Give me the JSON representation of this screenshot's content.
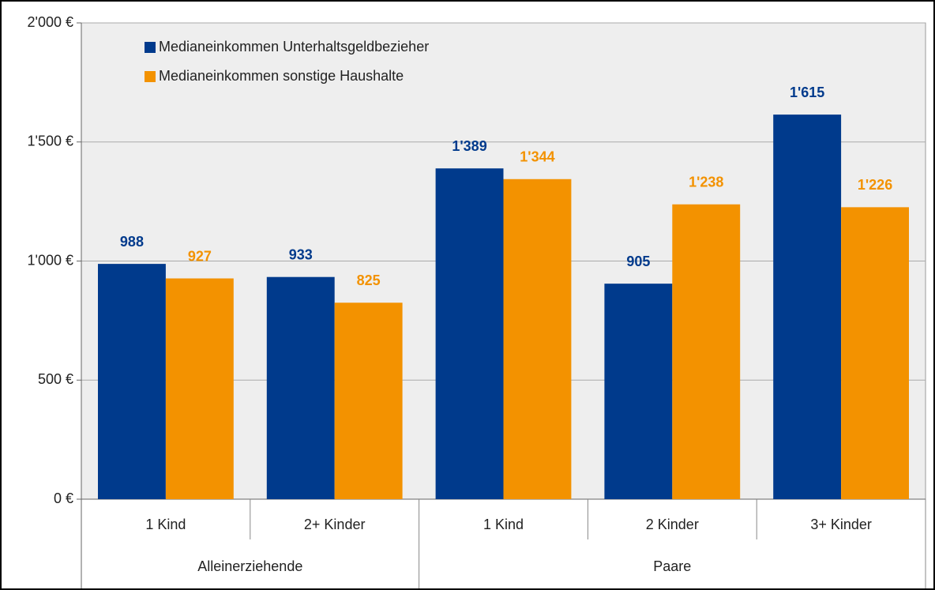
{
  "chart_data": {
    "type": "bar",
    "groups": [
      {
        "name": "Alleinerziehende",
        "categories": [
          "1 Kind",
          "2+ Kinder"
        ]
      },
      {
        "name": "Paare",
        "categories": [
          "1 Kind",
          "2 Kinder",
          "3+ Kinder"
        ]
      }
    ],
    "series": [
      {
        "name": "Medianeinkommen Unterhaltsgeldbezieher",
        "color": "#003a8c",
        "values": [
          988,
          933,
          1389,
          905,
          1615
        ],
        "value_labels": [
          "988",
          "933",
          "1'389",
          "905",
          "1'615"
        ]
      },
      {
        "name": "Medianeinkommen sonstige Haushalte",
        "color": "#f39200",
        "values": [
          927,
          825,
          1344,
          1238,
          1226
        ],
        "value_labels": [
          "927",
          "825",
          "1'344",
          "1'238",
          "1'226"
        ]
      }
    ],
    "ylim": [
      0,
      2000
    ],
    "yticks": [
      {
        "value": 0,
        "label": "0 €"
      },
      {
        "value": 500,
        "label": "500 €"
      },
      {
        "value": 1000,
        "label": "1'000 €"
      },
      {
        "value": 1500,
        "label": "1'500 €"
      },
      {
        "value": 2000,
        "label": "2'000 €"
      }
    ],
    "grid": true,
    "legend": "top-left"
  }
}
